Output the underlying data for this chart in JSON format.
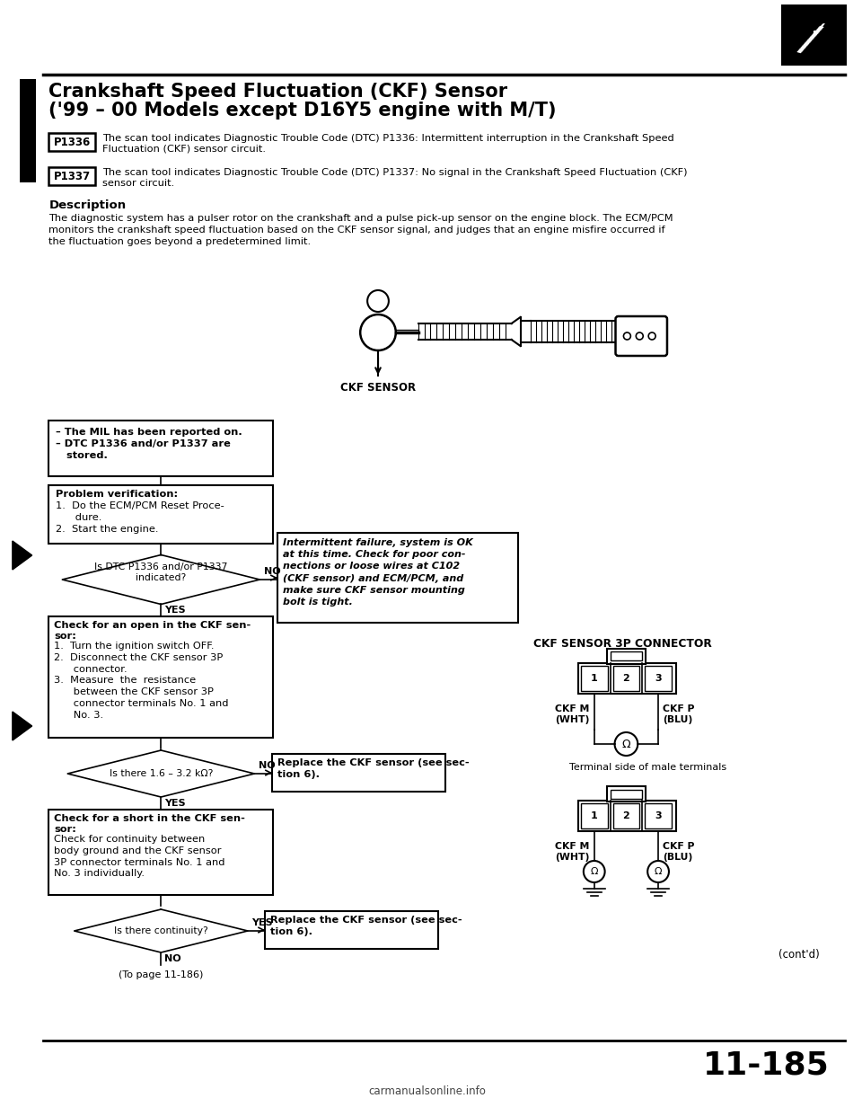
{
  "bg_color": "#ffffff",
  "page_width": 9.6,
  "page_height": 12.42,
  "title_line1": "Crankshaft Speed Fluctuation (CKF) Sensor",
  "title_line2": "('99 – 00 Models except D16Y5 engine with M/T)",
  "dtc_p1336_label": "P1336",
  "dtc_p1336_text": "The scan tool indicates Diagnostic Trouble Code (DTC) P1336: Intermittent interruption in the Crankshaft Speed\nFluctuation (CKF) sensor circuit.",
  "dtc_p1337_label": "P1337",
  "dtc_p1337_text": "The scan tool indicates Diagnostic Trouble Code (DTC) P1337: No signal in the Crankshaft Speed Fluctuation (CKF)\nsensor circuit.",
  "desc_title": "Description",
  "desc_text": "The diagnostic system has a pulser rotor on the crankshaft and a pulse pick-up sensor on the engine block. The ECM/PCM\nmonitors the crankshaft speed fluctuation based on the CKF sensor signal, and judges that an engine misfire occurred if\nthe fluctuation goes beyond a predetermined limit.",
  "box1_text": "– The MIL has been reported on.\n– DTC P1336 and/or P1337 are\n   stored.",
  "box2_title": "Problem verification:",
  "box2_text": "1.  Do the ECM/PCM Reset Proce-\n      dure.\n2.  Start the engine.",
  "diamond1_text": "Is DTC P1336 and/or P1337\nindicated?",
  "no_box1_text": "Intermittent failure, system is OK\nat this time. Check for poor con-\nnections or loose wires at C102\n(CKF sensor) and ECM/PCM, and\nmake sure CKF sensor mounting\nbolt is tight.",
  "box3_title": "Check for an open in the CKF sen-\nsor:",
  "box3_text": "1.  Turn the ignition switch OFF.\n2.  Disconnect the CKF sensor 3P\n      connector.\n3.  Measure  the  resistance\n      between the CKF sensor 3P\n      connector terminals No. 1 and\n      No. 3.",
  "diamond2_text": "Is there 1.6 – 3.2 kΩ?",
  "no_box2_text": "Replace the CKF sensor (see sec-\ntion 6).",
  "box4_title": "Check for a short in the CKF sen-\nsor:",
  "box4_text": "Check for continuity between\nbody ground and the CKF sensor\n3P connector terminals No. 1 and\nNo. 3 individually.",
  "diamond3_text": "Is there continuity?",
  "yes_box3_text": "Replace the CKF sensor (see sec-\ntion 6).",
  "bottom_note": "(To page 11-186)",
  "ckf_sensor_label": "CKF SENSOR",
  "connector_title": "CKF SENSOR 3P CONNECTOR",
  "ckfm_label": "CKF M\n(WHT)",
  "ckfp_label": "CKF P\n(BLU)",
  "terminal_note": "Terminal side of male terminals",
  "page_num": "11-185",
  "contd": "(cont'd)",
  "footer": "carmanualsonline.info"
}
